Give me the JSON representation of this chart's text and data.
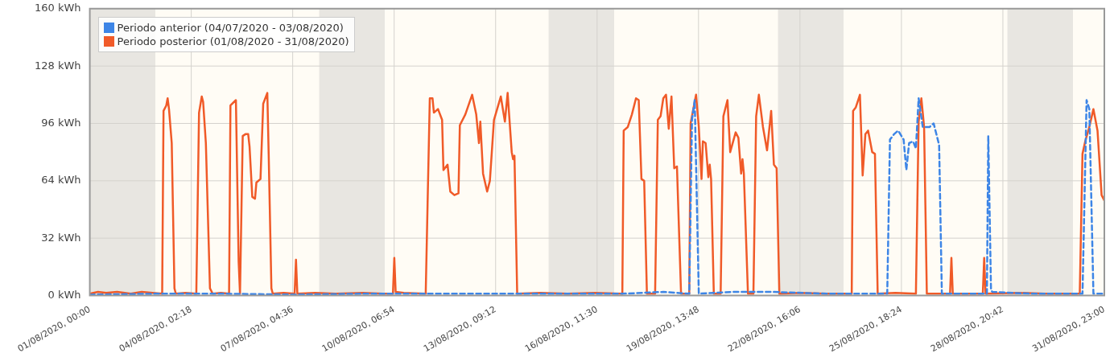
{
  "chart_data": {
    "type": "line",
    "xlim": [
      "2020-08-01T00:00",
      "2020-08-31T23:00"
    ],
    "xticks": [
      {
        "value": "2020-08-01T00:00",
        "label": "01/08/2020, 00:00"
      },
      {
        "value": "2020-08-04T02:18",
        "label": "04/08/2020, 02:18"
      },
      {
        "value": "2020-08-07T04:36",
        "label": "07/08/2020, 04:36"
      },
      {
        "value": "2020-08-10T06:54",
        "label": "10/08/2020, 06:54"
      },
      {
        "value": "2020-08-13T09:12",
        "label": "13/08/2020, 09:12"
      },
      {
        "value": "2020-08-16T11:30",
        "label": "16/08/2020, 11:30"
      },
      {
        "value": "2020-08-19T13:48",
        "label": "19/08/2020, 13:48"
      },
      {
        "value": "2020-08-22T16:06",
        "label": "22/08/2020, 16:06"
      },
      {
        "value": "2020-08-25T18:24",
        "label": "25/08/2020, 18:24"
      },
      {
        "value": "2020-08-28T20:42",
        "label": "28/08/2020, 20:42"
      },
      {
        "value": "2020-08-31T23:00",
        "label": "31/08/2020, 23:00"
      }
    ],
    "ylim": [
      0,
      160
    ],
    "yticks": [
      {
        "value": 0,
        "label": "0 kWh"
      },
      {
        "value": 32,
        "label": "32 kWh"
      },
      {
        "value": 64,
        "label": "64 kWh"
      },
      {
        "value": 96,
        "label": "96 kWh"
      },
      {
        "value": 128,
        "label": "128 kWh"
      },
      {
        "value": 160,
        "label": "160 kWh"
      }
    ],
    "grid": true,
    "legend": "top left",
    "marker": "none",
    "bands": [
      {
        "axis": "x",
        "from": "2020-08-01T00:00",
        "to": "2020-08-03T00:00",
        "color": "#e8e6e1"
      },
      {
        "axis": "x",
        "from": "2020-08-08T00:00",
        "to": "2020-08-10T00:00",
        "color": "#e8e6e1"
      },
      {
        "axis": "x",
        "from": "2020-08-15T00:00",
        "to": "2020-08-17T00:00",
        "color": "#e8e6e1"
      },
      {
        "axis": "x",
        "from": "2020-08-22T00:00",
        "to": "2020-08-24T00:00",
        "color": "#e8e6e1"
      },
      {
        "axis": "x",
        "from": "2020-08-29T00:00",
        "to": "2020-08-31T00:00",
        "color": "#e8e6e1"
      }
    ],
    "series": [
      {
        "name": "Periodo anterior (04/07/2020 - 03/08/2020)",
        "color": "#3d85e6",
        "line_style": "dashed",
        "x": [
          "2020-08-01T00:00",
          "2020-08-03T02:00",
          "2020-08-05T04:00",
          "2020-08-07T06:00",
          "2020-08-09T08:00",
          "2020-08-11T20:00",
          "2020-08-13T12:00",
          "2020-08-15T04:00",
          "2020-08-17T06:00",
          "2020-08-18T12:00",
          "2020-08-19T07:00",
          "2020-08-19T09:00",
          "2020-08-19T11:00",
          "2020-08-19T14:00",
          "2020-08-20T14:00",
          "2020-08-21T20:00",
          "2020-08-23T12:00",
          "2020-08-24T18:00",
          "2020-08-25T08:00",
          "2020-08-25T10:00",
          "2020-08-25T13:00",
          "2020-08-25T16:00",
          "2020-08-25T20:00",
          "2020-08-25T22:00",
          "2020-08-26T00:00",
          "2020-08-26T03:00",
          "2020-08-26T05:00",
          "2020-08-26T07:00",
          "2020-08-26T10:00",
          "2020-08-26T15:00",
          "2020-08-26T18:00",
          "2020-08-26T22:00",
          "2020-08-27T00:00",
          "2020-08-27T16:00",
          "2020-08-28T09:00",
          "2020-08-28T10:00",
          "2020-08-28T12:00",
          "2020-08-28T13:00",
          "2020-08-29T18:00",
          "2020-08-31T07:00",
          "2020-08-31T10:00",
          "2020-08-31T12:00",
          "2020-08-31T15:00",
          "2020-08-31T23:00"
        ],
        "values": [
          0.5,
          1,
          1,
          0.5,
          1,
          1,
          1,
          1,
          1,
          2,
          1,
          98,
          109,
          1,
          2,
          2,
          1,
          1,
          1,
          87,
          90,
          92,
          87,
          70,
          85,
          86,
          82,
          110,
          94,
          94,
          96,
          84,
          1,
          1,
          1,
          89,
          3,
          2,
          1,
          1,
          109,
          104,
          1,
          1
        ]
      },
      {
        "name": "Periodo posterior (01/08/2020 - 31/08/2020)",
        "color": "#f05a28",
        "line_style": "solid",
        "x": [
          "2020-08-01T00:00",
          "2020-08-01T06:00",
          "2020-08-01T12:00",
          "2020-08-01T20:00",
          "2020-08-02T06:00",
          "2020-08-02T14:00",
          "2020-08-02T22:00",
          "2020-08-03T05:00",
          "2020-08-03T06:00",
          "2020-08-03T08:00",
          "2020-08-03T09:00",
          "2020-08-03T10:00",
          "2020-08-03T12:00",
          "2020-08-03T14:00",
          "2020-08-03T15:00",
          "2020-08-03T22:00",
          "2020-08-04T06:00",
          "2020-08-04T08:00",
          "2020-08-04T10:00",
          "2020-08-04T11:00",
          "2020-08-04T13:00",
          "2020-08-04T16:00",
          "2020-08-04T18:00",
          "2020-08-05T00:00",
          "2020-08-05T06:00",
          "2020-08-05T07:00",
          "2020-08-05T11:00",
          "2020-08-05T13:00",
          "2020-08-05T14:00",
          "2020-08-05T16:00",
          "2020-08-05T18:00",
          "2020-08-05T20:00",
          "2020-08-05T21:00",
          "2020-08-05T23:00",
          "2020-08-06T01:00",
          "2020-08-06T02:00",
          "2020-08-06T05:00",
          "2020-08-06T07:00",
          "2020-08-06T10:00",
          "2020-08-06T11:00",
          "2020-08-06T13:00",
          "2020-08-06T14:00",
          "2020-08-06T22:00",
          "2020-08-07T06:00",
          "2020-08-07T07:00",
          "2020-08-07T08:00",
          "2020-08-07T21:00",
          "2020-08-08T12:00",
          "2020-08-09T08:00",
          "2020-08-09T23:00",
          "2020-08-10T06:00",
          "2020-08-10T07:00",
          "2020-08-10T08:00",
          "2020-08-10T14:00",
          "2020-08-11T06:00",
          "2020-08-11T09:00",
          "2020-08-11T11:00",
          "2020-08-11T12:00",
          "2020-08-11T15:00",
          "2020-08-11T18:00",
          "2020-08-11T19:00",
          "2020-08-11T22:00",
          "2020-08-12T00:00",
          "2020-08-12T03:00",
          "2020-08-12T06:00",
          "2020-08-12T07:00",
          "2020-08-12T11:00",
          "2020-08-12T16:00",
          "2020-08-12T19:00",
          "2020-08-12T21:00",
          "2020-08-12T22:00",
          "2020-08-13T00:00",
          "2020-08-13T03:00",
          "2020-08-13T05:00",
          "2020-08-13T08:00",
          "2020-08-13T13:00",
          "2020-08-13T16:00",
          "2020-08-13T18:00",
          "2020-08-13T21:00",
          "2020-08-13T22:00",
          "2020-08-13T23:00",
          "2020-08-14T01:00",
          "2020-08-14T18:00",
          "2020-08-15T14:00",
          "2020-08-16T10:00",
          "2020-08-17T06:00",
          "2020-08-17T07:00",
          "2020-08-17T10:00",
          "2020-08-17T13:00",
          "2020-08-17T16:00",
          "2020-08-17T18:00",
          "2020-08-17T20:00",
          "2020-08-17T22:00",
          "2020-08-18T00:00",
          "2020-08-18T06:00",
          "2020-08-18T08:00",
          "2020-08-18T10:00",
          "2020-08-18T12:00",
          "2020-08-18T14:00",
          "2020-08-18T16:00",
          "2020-08-18T18:00",
          "2020-08-18T20:00",
          "2020-08-18T22:00",
          "2020-08-19T01:00",
          "2020-08-19T07:00",
          "2020-08-19T08:00",
          "2020-08-19T12:00",
          "2020-08-19T14:00",
          "2020-08-19T16:00",
          "2020-08-19T17:00",
          "2020-08-19T19:00",
          "2020-08-19T21:00",
          "2020-08-19T22:00",
          "2020-08-19T23:00",
          "2020-08-20T01:00",
          "2020-08-20T06:00",
          "2020-08-20T08:00",
          "2020-08-20T11:00",
          "2020-08-20T13:00",
          "2020-08-20T17:00",
          "2020-08-20T19:00",
          "2020-08-20T21:00",
          "2020-08-20T22:00",
          "2020-08-20T23:00",
          "2020-08-21T02:00",
          "2020-08-21T06:00",
          "2020-08-21T08:00",
          "2020-08-21T10:00",
          "2020-08-21T13:00",
          "2020-08-21T16:00",
          "2020-08-21T19:00",
          "2020-08-21T21:00",
          "2020-08-21T23:00",
          "2020-08-22T01:00",
          "2020-08-22T16:00",
          "2020-08-23T12:00",
          "2020-08-24T06:00",
          "2020-08-24T07:00",
          "2020-08-24T09:00",
          "2020-08-24T12:00",
          "2020-08-24T14:00",
          "2020-08-24T16:00",
          "2020-08-24T18:00",
          "2020-08-24T21:00",
          "2020-08-24T23:00",
          "2020-08-25T01:00",
          "2020-08-25T14:00",
          "2020-08-26T05:00",
          "2020-08-26T07:00",
          "2020-08-26T09:00",
          "2020-08-26T11:00",
          "2020-08-26T13:00",
          "2020-08-27T06:00",
          "2020-08-27T07:00",
          "2020-08-27T08:00",
          "2020-08-28T06:00",
          "2020-08-28T07:00",
          "2020-08-28T08:00",
          "2020-08-29T08:00",
          "2020-08-30T04:00",
          "2020-08-31T05:00",
          "2020-08-31T07:00",
          "2020-08-31T09:00",
          "2020-08-31T12:00",
          "2020-08-31T15:00",
          "2020-08-31T18:00",
          "2020-08-31T21:00",
          "2020-08-31T23:00"
        ],
        "values": [
          1,
          2,
          1.5,
          2,
          1,
          2,
          1.5,
          1,
          103,
          106,
          110,
          104,
          85,
          4,
          1,
          1.5,
          1,
          102,
          111,
          108,
          85,
          4,
          1,
          1.5,
          1,
          106,
          109,
          19,
          1,
          89,
          90,
          90,
          83,
          55,
          54,
          63,
          65,
          107,
          113,
          79,
          4,
          1,
          1.5,
          1,
          20,
          1,
          1.5,
          1,
          1.5,
          1,
          1,
          21,
          2,
          1.5,
          1,
          110,
          110,
          102,
          104,
          98,
          70,
          73,
          58,
          56,
          57,
          95,
          101,
          112,
          101,
          85,
          97,
          68,
          58,
          64,
          98,
          111,
          97,
          113,
          80,
          76,
          78,
          1,
          1.5,
          1,
          1.5,
          1,
          92,
          94,
          101,
          110,
          109,
          65,
          64,
          1,
          1,
          98,
          100,
          110,
          112,
          93,
          111,
          71,
          72,
          1,
          1,
          96,
          112,
          94,
          65,
          86,
          85,
          66,
          73,
          65,
          1,
          1,
          100,
          109,
          80,
          91,
          88,
          68,
          76,
          68,
          1,
          1,
          100,
          112,
          94,
          81,
          103,
          73,
          71,
          1,
          1.5,
          1,
          1,
          103,
          105,
          112,
          67,
          90,
          92,
          80,
          79,
          1,
          1.5,
          1,
          97,
          110,
          94,
          1,
          1,
          21,
          1,
          1,
          21,
          1,
          1.5,
          1,
          1,
          79,
          86,
          94,
          104,
          92,
          56,
          53
        ]
      }
    ]
  }
}
